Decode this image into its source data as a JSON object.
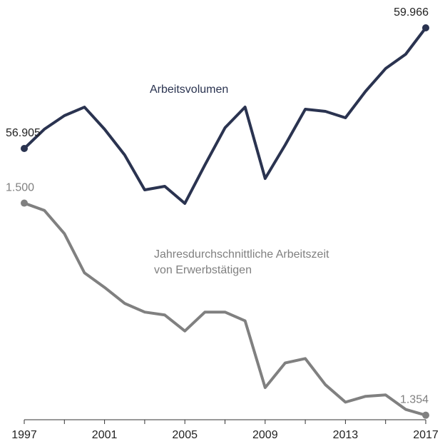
{
  "chart_data": {
    "type": "line",
    "x": [
      1997,
      1998,
      1999,
      2000,
      2001,
      2002,
      2003,
      2004,
      2005,
      2006,
      2007,
      2008,
      2009,
      2010,
      2011,
      2012,
      2013,
      2014,
      2015,
      2016,
      2017
    ],
    "xlim": [
      1997,
      2017
    ],
    "xticks": [
      1997,
      2001,
      2005,
      2009,
      2013,
      2017
    ],
    "xminor_ticks": [
      1999,
      2003,
      2007,
      2011,
      2015
    ],
    "ylim": [
      49806,
      60310
    ],
    "y2lim": [
      1345,
      1630
    ],
    "series": [
      {
        "name": "Arbeitsvolumen",
        "color": "#2a3350",
        "values": [
          56905,
          57394,
          57738,
          57955,
          57394,
          56742,
          55855,
          55945,
          55511,
          56488,
          57430,
          57955,
          56144,
          56996,
          57901,
          57847,
          57684,
          58354,
          58933,
          59296,
          59966
        ],
        "end_labels": {
          "first": "56.905",
          "last": "59.966"
        }
      },
      {
        "name": "Jahresdurchschnittliche Arbeitszeit von Erwerbstätigen",
        "color": "#808080",
        "axis": "y2",
        "values": [
          1500,
          1495,
          1479,
          1452,
          1442,
          1431,
          1425,
          1423,
          1412,
          1425,
          1425,
          1419,
          1373,
          1390,
          1393,
          1375,
          1363,
          1367,
          1368,
          1358,
          1354
        ],
        "end_labels": {
          "first": "1.500",
          "last": "1.354"
        }
      }
    ]
  }
}
